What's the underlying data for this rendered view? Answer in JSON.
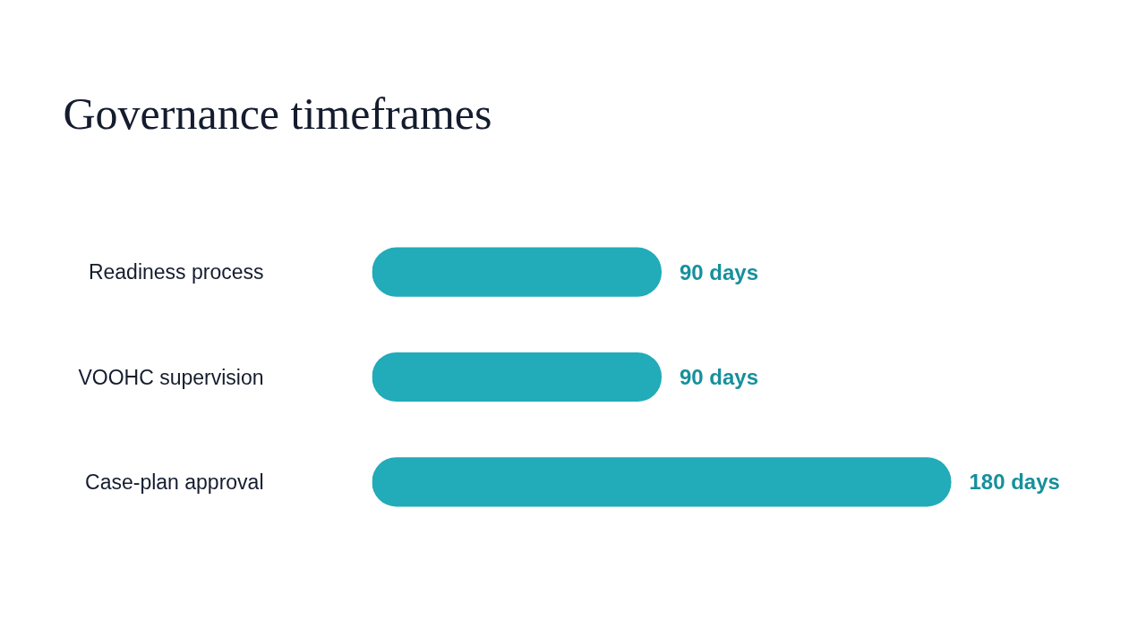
{
  "chart_data": {
    "type": "bar",
    "orientation": "horizontal",
    "title": "Governance timeframes",
    "categories": [
      "Readiness process",
      "VOOHC supervision",
      "Case-plan approval"
    ],
    "values": [
      90,
      90,
      180
    ],
    "value_labels": [
      "90 days",
      "90 days",
      "180 days"
    ],
    "color": "#22abb8",
    "tick_labels": "y"
  }
}
